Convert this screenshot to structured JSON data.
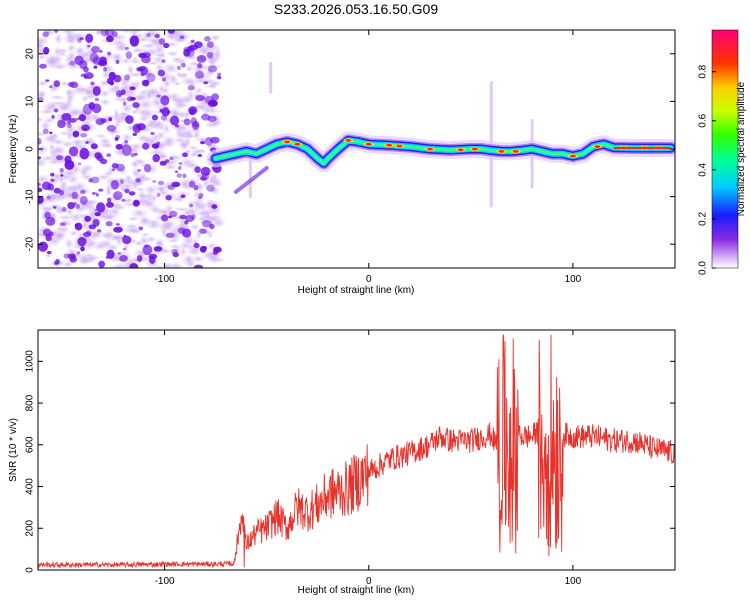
{
  "title": "S233.2026.053.16.50.G09",
  "chart_data": [
    {
      "type": "heatmap",
      "xlabel": "Height of straight line (km)",
      "ylabel": "Frequency (Hz)",
      "xlim": [
        -162,
        150
      ],
      "ylim": [
        -25,
        25
      ],
      "xticks": [
        -100,
        0,
        100
      ],
      "xtick_labels": [
        "-100",
        "0",
        "100"
      ],
      "yticks": [
        -20,
        -10,
        0,
        10,
        20
      ],
      "ytick_labels": [
        "-20",
        "-10",
        "0",
        "10",
        "20"
      ],
      "noise_region_end_km": -73,
      "ridge": {
        "x": [
          -75,
          -70,
          -65,
          -60,
          -55,
          -50,
          -45,
          -40,
          -35,
          -30,
          -25,
          -22,
          -20,
          -15,
          -10,
          -5,
          0,
          10,
          20,
          30,
          40,
          50,
          55,
          60,
          65,
          70,
          75,
          80,
          85,
          90,
          95,
          100,
          105,
          110,
          115,
          120,
          130,
          140,
          148
        ],
        "y": [
          -2,
          -1.5,
          -1,
          -0.5,
          -1,
          0,
          1,
          1.5,
          1,
          0,
          -2,
          -3,
          -2,
          0,
          1.8,
          1.5,
          1,
          0.8,
          0.5,
          0,
          -0.2,
          0,
          0,
          -0.3,
          -0.5,
          -0.5,
          -0.3,
          0,
          -0.5,
          -1,
          -1,
          -1.5,
          -1,
          0.5,
          1,
          0.3,
          0.2,
          0.2,
          0.2
        ]
      },
      "colorbar": {
        "label": "Normalized spectral amplitude",
        "ticks": [
          0.0,
          0.2,
          0.4,
          0.6,
          0.8
        ],
        "tick_labels": [
          "0.0",
          "0.2",
          "0.4",
          "0.6",
          "0.8"
        ],
        "range": [
          0,
          0.97
        ]
      }
    },
    {
      "type": "line",
      "xlabel": "Height of straight line (km)",
      "ylabel": "SNR (10 * v/v)",
      "xlim": [
        -162,
        150
      ],
      "ylim": [
        0,
        1150
      ],
      "xticks": [
        -100,
        0,
        100
      ],
      "xtick_labels": [
        "-100",
        "0",
        "100"
      ],
      "yticks": [
        0,
        200,
        400,
        600,
        800,
        1000
      ],
      "ytick_labels": [
        "0",
        "200",
        "400",
        "600",
        "800",
        "1000"
      ],
      "series": [
        {
          "name": "SNR",
          "color": "#e8322c",
          "x": [
            -162,
            -140,
            -120,
            -100,
            -80,
            -66,
            -62,
            -60,
            -55,
            -50,
            -45,
            -40,
            -35,
            -30,
            -25,
            -20,
            -10,
            0,
            10,
            20,
            30,
            35,
            40,
            50,
            60,
            62,
            65,
            67,
            70,
            72,
            75,
            80,
            85,
            88,
            90,
            92,
            95,
            100,
            110,
            120,
            130,
            140,
            150
          ],
          "y": [
            25,
            25,
            25,
            28,
            28,
            30,
            300,
            120,
            180,
            200,
            260,
            200,
            300,
            280,
            310,
            360,
            390,
            470,
            530,
            560,
            600,
            640,
            620,
            620,
            650,
            600,
            700,
            740,
            650,
            690,
            640,
            640,
            680,
            620,
            600,
            640,
            650,
            640,
            640,
            620,
            620,
            580,
            560
          ],
          "oscillation_ranges": [
            {
              "x": [
                63,
                73
              ],
              "min": 80,
              "max": 1130
            },
            {
              "x": [
                83,
                95
              ],
              "min": 60,
              "max": 1150
            }
          ]
        }
      ]
    }
  ]
}
